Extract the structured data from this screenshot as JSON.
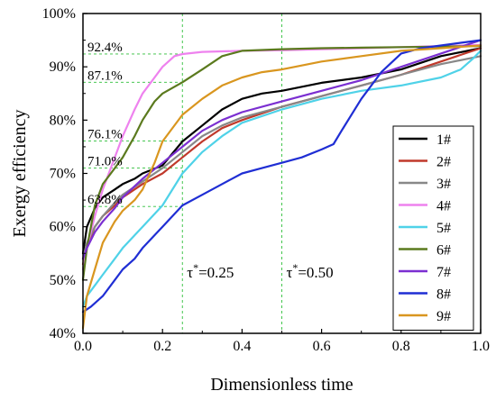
{
  "chart_data": {
    "type": "line",
    "xlabel": "Dimensionless time",
    "ylabel": "Exergy efficiency",
    "xlim": [
      0.0,
      1.0
    ],
    "ylim": [
      40,
      100
    ],
    "xticks": [
      0.0,
      0.2,
      0.4,
      0.6,
      0.8,
      1.0
    ],
    "xtick_labels": [
      "0.0",
      "0.2",
      "0.4",
      "0.6",
      "0.8",
      "1.0"
    ],
    "yticks": [
      40,
      50,
      60,
      70,
      80,
      90,
      100
    ],
    "ytick_labels": [
      "40%",
      "50%",
      "60%",
      "70%",
      "80%",
      "90%",
      "100%"
    ],
    "grid": false,
    "legend_position": "right",
    "annotations": [
      {
        "text": "92.4%",
        "y": 92.4,
        "x_end": 0.25
      },
      {
        "text": "87.1%",
        "y": 87.1,
        "x_end": 0.25
      },
      {
        "text": "76.1%",
        "y": 76.1,
        "x_end": 0.25
      },
      {
        "text": "71.0%",
        "y": 71.0,
        "x_end": 0.25
      },
      {
        "text": "63.8%",
        "y": 63.8,
        "x_end": 0.25
      }
    ],
    "vlines": [
      {
        "x": 0.25,
        "text_prefix": "τ",
        "text_sup": "*",
        "text_suffix": "=0.25"
      },
      {
        "x": 0.5,
        "text_prefix": "τ",
        "text_sup": "*",
        "text_suffix": "=0.50"
      }
    ],
    "series": [
      {
        "name": "1#",
        "color": "#000000",
        "x": [
          0,
          0.01,
          0.03,
          0.05,
          0.08,
          0.1,
          0.13,
          0.15,
          0.2,
          0.25,
          0.3,
          0.35,
          0.4,
          0.45,
          0.5,
          0.6,
          0.7,
          0.8,
          0.9,
          1.0
        ],
        "y": [
          55,
          60,
          63.5,
          65.5,
          67,
          68,
          69,
          70,
          71.5,
          76,
          79,
          82,
          84,
          85,
          85.5,
          87,
          88,
          89.5,
          92,
          93.5
        ]
      },
      {
        "name": "2#",
        "color": "#c0392b",
        "x": [
          0,
          0.01,
          0.03,
          0.05,
          0.08,
          0.1,
          0.15,
          0.2,
          0.25,
          0.3,
          0.35,
          0.4,
          0.5,
          0.6,
          0.7,
          0.8,
          0.9,
          1.0
        ],
        "y": [
          53,
          56,
          60,
          62,
          64,
          65.5,
          68,
          70,
          73,
          76,
          78.5,
          80,
          82.5,
          84.5,
          86.5,
          88.5,
          91,
          93.5
        ]
      },
      {
        "name": "3#",
        "color": "#888888",
        "x": [
          0,
          0.01,
          0.03,
          0.05,
          0.08,
          0.1,
          0.15,
          0.2,
          0.25,
          0.3,
          0.35,
          0.4,
          0.5,
          0.6,
          0.7,
          0.8,
          0.9,
          1.0
        ],
        "y": [
          54,
          57,
          60,
          62,
          64.5,
          66,
          68.5,
          71,
          74,
          77,
          79,
          80.5,
          82.5,
          84.5,
          86.5,
          88.5,
          90.5,
          92
        ]
      },
      {
        "name": "4#",
        "color": "#ee82ee",
        "x": [
          0,
          0.01,
          0.03,
          0.05,
          0.08,
          0.1,
          0.13,
          0.15,
          0.18,
          0.2,
          0.23,
          0.25,
          0.3,
          0.4,
          0.5,
          0.6,
          0.7,
          0.8,
          0.9,
          1.0
        ],
        "y": [
          52,
          56,
          62,
          67,
          73,
          77,
          82,
          85,
          88,
          90,
          92,
          92.4,
          92.8,
          93,
          93.1,
          93.3,
          93.5,
          93.7,
          93.9,
          94.1
        ]
      },
      {
        "name": "5#",
        "color": "#4fd2e8",
        "x": [
          0,
          0.01,
          0.03,
          0.05,
          0.08,
          0.1,
          0.15,
          0.2,
          0.25,
          0.3,
          0.35,
          0.4,
          0.5,
          0.6,
          0.7,
          0.8,
          0.9,
          0.95,
          0.98,
          1.0
        ],
        "y": [
          45,
          47,
          49,
          51,
          54,
          56,
          60,
          64,
          70,
          74,
          77,
          79.5,
          82,
          84,
          85.5,
          86.5,
          88,
          89.5,
          91.5,
          93
        ]
      },
      {
        "name": "6#",
        "color": "#5b7a1e",
        "x": [
          0,
          0.01,
          0.03,
          0.05,
          0.08,
          0.1,
          0.13,
          0.15,
          0.18,
          0.2,
          0.25,
          0.3,
          0.35,
          0.4,
          0.5,
          0.6,
          0.7,
          0.8,
          0.9,
          1.0
        ],
        "y": [
          50,
          56,
          64,
          68,
          71,
          73,
          77,
          80,
          83.5,
          85,
          87.1,
          89.5,
          92,
          93,
          93.3,
          93.5,
          93.6,
          93.7,
          93.8,
          93.9
        ]
      },
      {
        "name": "7#",
        "color": "#7b2fd1",
        "x": [
          0,
          0.01,
          0.03,
          0.05,
          0.08,
          0.1,
          0.15,
          0.2,
          0.25,
          0.3,
          0.35,
          0.4,
          0.5,
          0.6,
          0.7,
          0.8,
          0.9,
          1.0
        ],
        "y": [
          54,
          56,
          59,
          61,
          63.5,
          65.5,
          69,
          72,
          75,
          78,
          80,
          81.5,
          83.5,
          85.5,
          87.5,
          90,
          92.5,
          95
        ]
      },
      {
        "name": "8#",
        "color": "#1f2ed4",
        "x": [
          0,
          0.02,
          0.05,
          0.08,
          0.1,
          0.13,
          0.15,
          0.2,
          0.25,
          0.3,
          0.35,
          0.4,
          0.45,
          0.5,
          0.55,
          0.6,
          0.63,
          0.65,
          0.7,
          0.75,
          0.8,
          0.85,
          0.9,
          0.95,
          1.0
        ],
        "y": [
          44,
          45,
          47,
          50,
          52,
          54,
          56,
          60,
          64,
          66,
          68,
          70,
          71,
          72,
          73,
          74.5,
          75.5,
          78,
          84,
          89,
          92.5,
          93.5,
          94,
          94.5,
          95
        ]
      },
      {
        "name": "9#",
        "color": "#d9961f",
        "x": [
          0,
          0.01,
          0.03,
          0.05,
          0.08,
          0.1,
          0.13,
          0.15,
          0.18,
          0.2,
          0.25,
          0.3,
          0.35,
          0.4,
          0.45,
          0.5,
          0.6,
          0.7,
          0.8,
          0.9,
          1.0
        ],
        "y": [
          41,
          47,
          52,
          57,
          61,
          63,
          65,
          67,
          72,
          76,
          81,
          84,
          86.5,
          88,
          89,
          89.5,
          91,
          92,
          93,
          93.5,
          94
        ]
      }
    ]
  }
}
